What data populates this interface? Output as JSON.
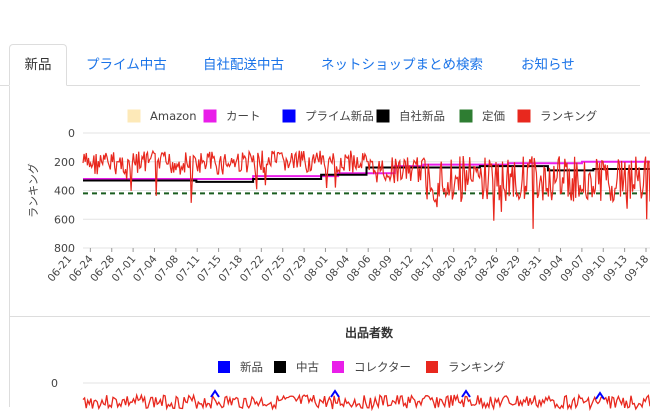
{
  "tabs": [
    {
      "label": "新品",
      "active": true
    },
    {
      "label": "プライム中古"
    },
    {
      "label": "自社配送中古"
    },
    {
      "label": "ネットショップまとめ検索"
    },
    {
      "label": "お知らせ"
    }
  ],
  "chart_data": [
    {
      "type": "line",
      "title": "",
      "ylabel": "ランキング",
      "ylim": [
        800,
        0
      ],
      "y_ticks": [
        0,
        200,
        400,
        600,
        800
      ],
      "x_ticks": [
        "06-21",
        "06-24",
        "06-28",
        "07-01",
        "07-04",
        "07-08",
        "07-11",
        "07-15",
        "07-18",
        "07-22",
        "07-25",
        "07-29",
        "08-01",
        "08-04",
        "08-06",
        "08-09",
        "08-12",
        "08-17",
        "08-20",
        "08-23",
        "08-26",
        "08-29",
        "08-31",
        "09-04",
        "09-07",
        "09-10",
        "09-13",
        "09-18"
      ],
      "legend": [
        {
          "name": "Amazon",
          "color": "#fde9b8"
        },
        {
          "name": "カート",
          "color": "#e91ee9"
        },
        {
          "name": "プライム新品",
          "color": "#0000ff"
        },
        {
          "name": "自社新品",
          "color": "#000000"
        },
        {
          "name": "定価",
          "color": "#2e7d32"
        },
        {
          "name": "ランキング",
          "color": "#e8281e"
        }
      ],
      "series": [
        {
          "name": "カート",
          "color": "#e91ee9",
          "points": [
            [
              0,
              320
            ],
            [
              0.25,
              320
            ],
            [
              0.3,
              300
            ],
            [
              0.45,
              280
            ],
            [
              0.55,
              230
            ],
            [
              0.6,
              220
            ],
            [
              0.75,
              210
            ],
            [
              0.88,
              200
            ],
            [
              1.0,
              200
            ]
          ]
        },
        {
          "name": "自社新品",
          "color": "#000000",
          "points": [
            [
              0,
              330
            ],
            [
              0.2,
              340
            ],
            [
              0.3,
              320
            ],
            [
              0.42,
              290
            ],
            [
              0.5,
              240
            ],
            [
              0.6,
              240
            ],
            [
              0.7,
              230
            ],
            [
              0.82,
              260
            ],
            [
              0.9,
              250
            ],
            [
              1.0,
              250
            ]
          ]
        },
        {
          "name": "定価",
          "color": "#1b5e20",
          "dashed": true,
          "points": [
            [
              0,
              420
            ],
            [
              1.0,
              420
            ]
          ]
        }
      ]
    },
    {
      "type": "line",
      "title": "出品者数",
      "ylim": [
        0,
        null
      ],
      "y_ticks": [
        0
      ],
      "legend": [
        {
          "name": "新品",
          "color": "#0000ff"
        },
        {
          "name": "中古",
          "color": "#000000"
        },
        {
          "name": "コレクター",
          "color": "#e91ee9"
        },
        {
          "name": "ランキング",
          "color": "#e8281e"
        }
      ]
    }
  ]
}
